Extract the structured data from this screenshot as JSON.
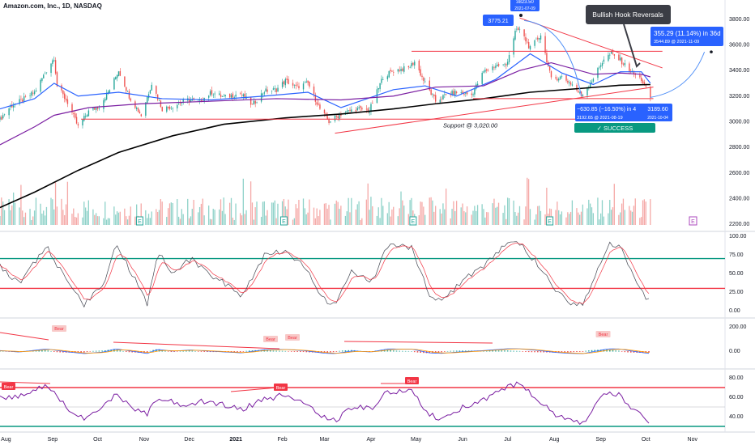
{
  "header": {
    "symbol_title": "Amazon.com, Inc., 1D, NASDAQ"
  },
  "colors": {
    "up": "#26a69a",
    "down": "#ef5350",
    "ma_blue": "#2962ff",
    "ma_purple": "#7b1fa2",
    "ma_black": "#000000",
    "red_line": "#f23645",
    "green_line": "#089981",
    "label_blue": "#2962ff",
    "axis_text": "#131722"
  },
  "chart_data": [
    {
      "type": "candlestick",
      "panel": "price",
      "title": "Amazon.com, Inc., 1D, NASDAQ",
      "ylim": [
        2150,
        3950
      ],
      "y_ticks": [
        3800,
        3600,
        3400,
        3200,
        3000,
        2800,
        2600,
        2400,
        2200
      ],
      "y_tick_labels": [
        "3800.00",
        "3600.00",
        "3400.00",
        "3200.00",
        "3000.00",
        "2800.00",
        "2600.00",
        "2400.00",
        "2200.00"
      ],
      "x_tick_labels": [
        "Aug",
        "Sep",
        "Oct",
        "Nov",
        "Dec",
        "2021",
        "Feb",
        "Mar",
        "Apr",
        "May",
        "Jun",
        "Jul",
        "Aug",
        "Sep",
        "Oct",
        "Nov"
      ],
      "x_tick_dates": [
        "2020-08-01",
        "2020-09-01",
        "2020-10-01",
        "2020-11-01",
        "2020-12-01",
        "2021-01-01",
        "2021-02-01",
        "2021-03-01",
        "2021-04-01",
        "2021-05-01",
        "2021-06-01",
        "2021-07-01",
        "2021-08-01",
        "2021-09-01",
        "2021-10-01",
        "2021-11-01"
      ],
      "close_path": [
        [
          "2020-07-28",
          3020
        ],
        [
          "2020-08-04",
          3120
        ],
        [
          "2020-08-12",
          3170
        ],
        [
          "2020-08-20",
          3230
        ],
        [
          "2020-08-27",
          3380
        ],
        [
          "2020-09-02",
          3500
        ],
        [
          "2020-09-04",
          3280
        ],
        [
          "2020-09-11",
          3150
        ],
        [
          "2020-09-18",
          2960
        ],
        [
          "2020-09-25",
          3080
        ],
        [
          "2020-10-02",
          3120
        ],
        [
          "2020-10-09",
          3250
        ],
        [
          "2020-10-15",
          3400
        ],
        [
          "2020-10-22",
          3200
        ],
        [
          "2020-10-30",
          3050
        ],
        [
          "2020-11-06",
          3300
        ],
        [
          "2020-11-13",
          3100
        ],
        [
          "2020-11-20",
          3120
        ],
        [
          "2020-11-30",
          3170
        ],
        [
          "2020-12-08",
          3160
        ],
        [
          "2020-12-16",
          3230
        ],
        [
          "2020-12-24",
          3190
        ],
        [
          "2021-01-04",
          3220
        ],
        [
          "2021-01-12",
          3130
        ],
        [
          "2021-01-20",
          3240
        ],
        [
          "2021-01-28",
          3250
        ],
        [
          "2021-02-03",
          3320
        ],
        [
          "2021-02-10",
          3270
        ],
        [
          "2021-02-18",
          3300
        ],
        [
          "2021-02-26",
          3100
        ],
        [
          "2021-03-04",
          3000
        ],
        [
          "2021-03-12",
          3060
        ],
        [
          "2021-03-22",
          3100
        ],
        [
          "2021-03-31",
          3090
        ],
        [
          "2021-04-09",
          3350
        ],
        [
          "2021-04-16",
          3400
        ],
        [
          "2021-04-26",
          3420
        ],
        [
          "2021-04-30",
          3470
        ],
        [
          "2021-05-07",
          3300
        ],
        [
          "2021-05-14",
          3160
        ],
        [
          "2021-05-21",
          3210
        ],
        [
          "2021-05-28",
          3230
        ],
        [
          "2021-06-07",
          3210
        ],
        [
          "2021-06-15",
          3390
        ],
        [
          "2021-06-23",
          3440
        ],
        [
          "2021-06-30",
          3440
        ],
        [
          "2021-07-06",
          3700
        ],
        [
          "2021-07-09",
          3720
        ],
        [
          "2021-07-16",
          3570
        ],
        [
          "2021-07-23",
          3680
        ],
        [
          "2021-07-30",
          3330
        ],
        [
          "2021-08-06",
          3350
        ],
        [
          "2021-08-13",
          3290
        ],
        [
          "2021-08-19",
          3200
        ],
        [
          "2021-08-27",
          3340
        ],
        [
          "2021-09-03",
          3490
        ],
        [
          "2021-09-08",
          3530
        ],
        [
          "2021-09-14",
          3480
        ],
        [
          "2021-09-22",
          3380
        ],
        [
          "2021-09-28",
          3330
        ],
        [
          "2021-10-04",
          3190
        ]
      ],
      "moving_averages": [
        {
          "color": "ma_blue",
          "points": [
            [
              "2020-07-28",
              3100
            ],
            [
              "2020-08-20",
              3180
            ],
            [
              "2020-09-02",
              3300
            ],
            [
              "2020-09-18",
              3200
            ],
            [
              "2020-10-15",
              3230
            ],
            [
              "2020-11-13",
              3180
            ],
            [
              "2020-12-16",
              3170
            ],
            [
              "2021-01-20",
              3200
            ],
            [
              "2021-02-18",
              3230
            ],
            [
              "2021-03-12",
              3110
            ],
            [
              "2021-04-16",
              3250
            ],
            [
              "2021-05-07",
              3280
            ],
            [
              "2021-05-28",
              3200
            ],
            [
              "2021-06-23",
              3330
            ],
            [
              "2021-07-16",
              3530
            ],
            [
              "2021-08-06",
              3380
            ],
            [
              "2021-08-27",
              3290
            ],
            [
              "2021-09-14",
              3390
            ],
            [
              "2021-09-28",
              3390
            ],
            [
              "2021-10-04",
              3300
            ]
          ]
        },
        {
          "color": "ma_purple",
          "points": [
            [
              "2020-07-28",
              2820
            ],
            [
              "2020-08-20",
              2960
            ],
            [
              "2020-09-02",
              3050
            ],
            [
              "2020-09-25",
              3110
            ],
            [
              "2020-10-30",
              3140
            ],
            [
              "2020-12-16",
              3160
            ],
            [
              "2021-01-28",
              3180
            ],
            [
              "2021-03-12",
              3170
            ],
            [
              "2021-04-16",
              3200
            ],
            [
              "2021-05-14",
              3270
            ],
            [
              "2021-06-15",
              3280
            ],
            [
              "2021-07-09",
              3400
            ],
            [
              "2021-07-30",
              3460
            ],
            [
              "2021-08-27",
              3370
            ],
            [
              "2021-09-14",
              3380
            ],
            [
              "2021-09-28",
              3370
            ],
            [
              "2021-10-04",
              3350
            ]
          ]
        },
        {
          "color": "ma_black",
          "points": [
            [
              "2020-07-28",
              2330
            ],
            [
              "2020-08-20",
              2450
            ],
            [
              "2020-09-18",
              2620
            ],
            [
              "2020-10-15",
              2760
            ],
            [
              "2020-11-20",
              2890
            ],
            [
              "2020-12-24",
              2980
            ],
            [
              "2021-02-03",
              3030
            ],
            [
              "2021-03-12",
              3060
            ],
            [
              "2021-04-16",
              3100
            ],
            [
              "2021-05-14",
              3140
            ],
            [
              "2021-06-15",
              3180
            ],
            [
              "2021-07-16",
              3230
            ],
            [
              "2021-08-19",
              3260
            ],
            [
              "2021-09-14",
              3285
            ],
            [
              "2021-10-04",
              3290
            ]
          ]
        }
      ],
      "support_label": "Support @ 3,020.00",
      "support_value": 3020,
      "hook_label": "Bullish Hook Reversals",
      "peak_label": "3775.21",
      "peak_top_label": "3823.50",
      "peak_date_label": "2021-07-09",
      "measure_down": {
        "line1": "−630.85 (−16.50%) in 4",
        "line2": "3192.65 @ 2021-08-19"
      },
      "current_price": {
        "line1": "3189.60",
        "line2": "2021-10-04"
      },
      "measure_up": {
        "line1": "355.29 (11.14%) in 36d",
        "line2": "3544.89 @ 2021-11-09"
      },
      "success_label": "✓ SUCCESS",
      "earnings_marker": "E",
      "volume_ticks": [
        "2600.00",
        "2400.00",
        "2200.00"
      ]
    },
    {
      "type": "line",
      "panel": "stochastic",
      "ylim": [
        0,
        100
      ],
      "y_tick_labels": [
        "100.00",
        "75.00",
        "50.00",
        "25.00",
        "0.00"
      ],
      "overbought": 70,
      "oversold": 30,
      "k": [
        [
          "2020-07-28",
          60
        ],
        [
          "2020-08-10",
          35
        ],
        [
          "2020-08-28",
          88
        ],
        [
          "2020-09-10",
          40
        ],
        [
          "2020-09-22",
          8
        ],
        [
          "2020-10-05",
          35
        ],
        [
          "2020-10-13",
          90
        ],
        [
          "2020-10-25",
          45
        ],
        [
          "2020-11-03",
          10
        ],
        [
          "2020-11-10",
          80
        ],
        [
          "2020-11-20",
          50
        ],
        [
          "2020-12-02",
          70
        ],
        [
          "2020-12-18",
          45
        ],
        [
          "2021-01-05",
          20
        ],
        [
          "2021-01-20",
          75
        ],
        [
          "2021-02-02",
          80
        ],
        [
          "2021-02-15",
          60
        ],
        [
          "2021-03-01",
          15
        ],
        [
          "2021-03-08",
          8
        ],
        [
          "2021-03-20",
          55
        ],
        [
          "2021-04-01",
          35
        ],
        [
          "2021-04-12",
          88
        ],
        [
          "2021-04-28",
          85
        ],
        [
          "2021-05-10",
          20
        ],
        [
          "2021-05-18",
          12
        ],
        [
          "2021-06-01",
          40
        ],
        [
          "2021-06-15",
          60
        ],
        [
          "2021-07-01",
          92
        ],
        [
          "2021-07-09",
          90
        ],
        [
          "2021-07-22",
          60
        ],
        [
          "2021-08-03",
          25
        ],
        [
          "2021-08-13",
          10
        ],
        [
          "2021-08-20",
          7
        ],
        [
          "2021-08-30",
          55
        ],
        [
          "2021-09-06",
          90
        ],
        [
          "2021-09-13",
          88
        ],
        [
          "2021-09-22",
          50
        ],
        [
          "2021-09-30",
          20
        ],
        [
          "2021-10-04",
          10
        ]
      ]
    },
    {
      "type": "bar",
      "panel": "macd",
      "ylim": [
        -140,
        240
      ],
      "y_tick_labels": [
        "200.00",
        "0.00"
      ],
      "annotation": "Bear"
    },
    {
      "type": "line",
      "panel": "rsi",
      "ylim": [
        25,
        85
      ],
      "y_tick_labels": [
        "80.00",
        "60.00",
        "40.00"
      ],
      "overbought": 70,
      "oversold": 30,
      "annotation": "Bear",
      "rsi": [
        [
          "2020-07-28",
          60
        ],
        [
          "2020-08-12",
          62
        ],
        [
          "2020-08-28",
          72
        ],
        [
          "2020-09-10",
          50
        ],
        [
          "2020-09-22",
          38
        ],
        [
          "2020-10-05",
          50
        ],
        [
          "2020-10-13",
          64
        ],
        [
          "2020-10-25",
          48
        ],
        [
          "2020-11-03",
          42
        ],
        [
          "2020-11-10",
          60
        ],
        [
          "2020-11-25",
          52
        ],
        [
          "2020-12-10",
          56
        ],
        [
          "2021-01-05",
          48
        ],
        [
          "2021-01-20",
          58
        ],
        [
          "2021-02-02",
          62
        ],
        [
          "2021-02-15",
          55
        ],
        [
          "2021-03-01",
          40
        ],
        [
          "2021-03-08",
          36
        ],
        [
          "2021-03-20",
          50
        ],
        [
          "2021-04-01",
          48
        ],
        [
          "2021-04-12",
          66
        ],
        [
          "2021-04-28",
          66
        ],
        [
          "2021-05-10",
          42
        ],
        [
          "2021-05-18",
          38
        ],
        [
          "2021-06-01",
          50
        ],
        [
          "2021-06-15",
          58
        ],
        [
          "2021-07-01",
          72
        ],
        [
          "2021-07-09",
          74
        ],
        [
          "2021-07-22",
          56
        ],
        [
          "2021-08-03",
          40
        ],
        [
          "2021-08-13",
          36
        ],
        [
          "2021-08-20",
          32
        ],
        [
          "2021-08-30",
          56
        ],
        [
          "2021-09-06",
          66
        ],
        [
          "2021-09-13",
          62
        ],
        [
          "2021-09-22",
          48
        ],
        [
          "2021-09-30",
          38
        ],
        [
          "2021-10-04",
          34
        ]
      ]
    }
  ]
}
